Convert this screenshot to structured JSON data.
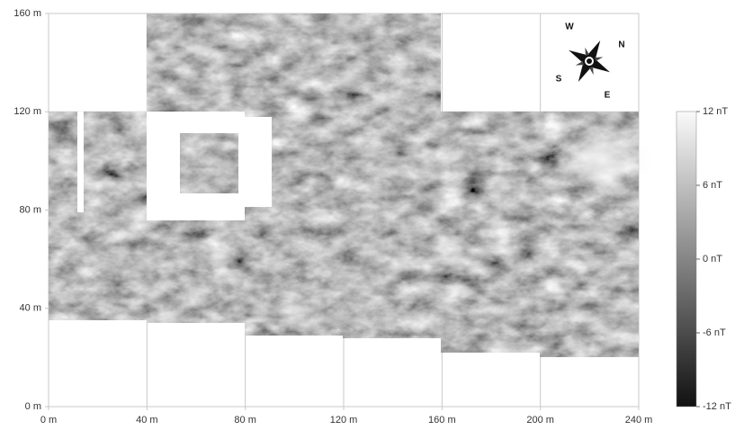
{
  "map": {
    "xticks": [
      {
        "value": 0,
        "label": "0 m"
      },
      {
        "value": 40,
        "label": "40 m"
      },
      {
        "value": 80,
        "label": "80 m"
      },
      {
        "value": 120,
        "label": "120 m"
      },
      {
        "value": 160,
        "label": "160 m"
      },
      {
        "value": 200,
        "label": "200 m"
      },
      {
        "value": 240,
        "label": "240 m"
      }
    ],
    "yticks": [
      {
        "value": 0,
        "label": "0 m"
      },
      {
        "value": 40,
        "label": "40 m"
      },
      {
        "value": 80,
        "label": "80 m"
      },
      {
        "value": 120,
        "label": "120 m"
      },
      {
        "value": 160,
        "label": "160 m"
      }
    ],
    "xlim": [
      0,
      240
    ],
    "ylim": [
      0,
      160
    ],
    "colorbar": {
      "lim": [
        -12,
        12
      ],
      "ticks": [
        {
          "value": 12,
          "label": "12 nT"
        },
        {
          "value": 6,
          "label": "6 nT"
        },
        {
          "value": 0,
          "label": "0 nT"
        },
        {
          "value": -6,
          "label": "-6 nT"
        },
        {
          "value": -12,
          "label": "-12 nT"
        }
      ]
    },
    "compass": {
      "w": "W",
      "n": "N",
      "s": "S",
      "e": "E"
    }
  }
}
